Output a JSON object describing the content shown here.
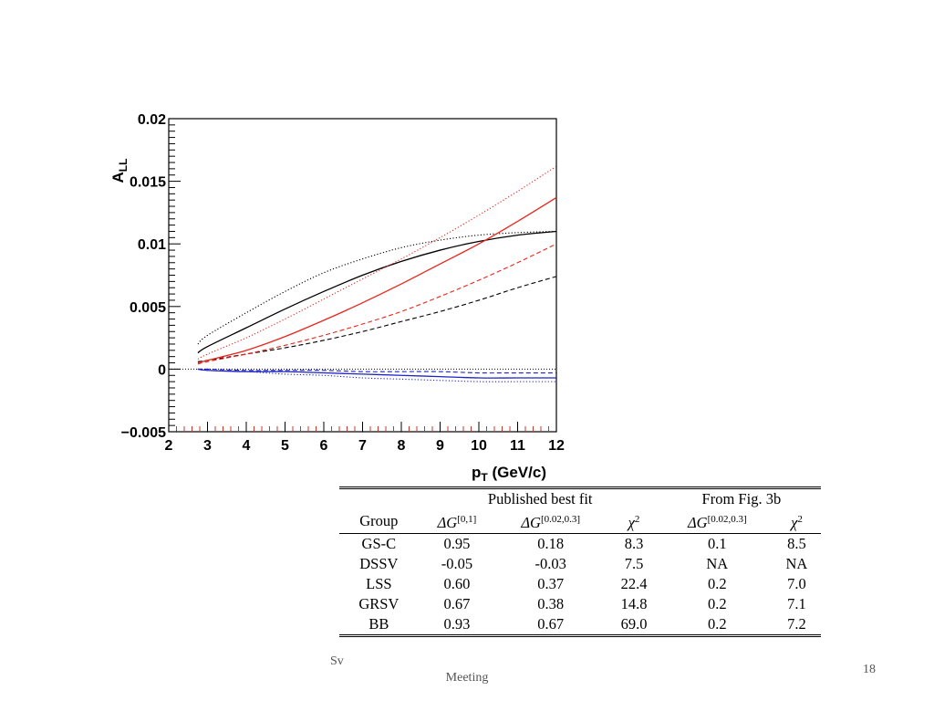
{
  "chart_data": {
    "type": "line",
    "xlabel": "p",
    "xlabel_sub": "T",
    "xlabel_unit": " (GeV/c)",
    "ylabel": "A",
    "ylabel_sub": "LL",
    "xlim": [
      2,
      12
    ],
    "ylim": [
      -0.005,
      0.02
    ],
    "x_ticks": [
      2,
      3,
      4,
      5,
      6,
      7,
      8,
      9,
      10,
      11,
      12
    ],
    "x_tick_labels": [
      "2",
      "3",
      "4",
      "5",
      "6",
      "7",
      "8",
      "9",
      "10",
      "11",
      "12"
    ],
    "y_ticks": [
      -0.005,
      0,
      0.005,
      0.01,
      0.015,
      0.02
    ],
    "y_tick_labels": [
      "−0.005",
      "0",
      "0.005",
      "0.01",
      "0.015",
      "0.02"
    ],
    "series": [
      {
        "color": "#000000",
        "style": "solid",
        "x": [
          2.75,
          3,
          4,
          5,
          6,
          7,
          8,
          9,
          10,
          11,
          12
        ],
        "y": [
          0.0013,
          0.0018,
          0.0033,
          0.0048,
          0.0062,
          0.0075,
          0.0086,
          0.0095,
          0.0102,
          0.0107,
          0.011
        ]
      },
      {
        "color": "#000000",
        "style": "dotted",
        "x": [
          2.75,
          3,
          4,
          5,
          6,
          7,
          8,
          9,
          10,
          11,
          12
        ],
        "y": [
          0.002,
          0.0027,
          0.0045,
          0.0062,
          0.0077,
          0.0088,
          0.0097,
          0.0103,
          0.0107,
          0.0109,
          0.011
        ]
      },
      {
        "color": "#000000",
        "style": "dashed",
        "x": [
          2.75,
          3,
          4,
          5,
          6,
          7,
          8,
          9,
          10,
          11,
          12
        ],
        "y": [
          0.0006,
          0.0007,
          0.0012,
          0.0017,
          0.0023,
          0.003,
          0.0038,
          0.0046,
          0.0055,
          0.0065,
          0.0074
        ]
      },
      {
        "color": "#e8251c",
        "style": "solid",
        "x": [
          2.75,
          3,
          4,
          5,
          6,
          7,
          8,
          9,
          10,
          11,
          12
        ],
        "y": [
          0.0005,
          0.0007,
          0.0015,
          0.0026,
          0.0039,
          0.0053,
          0.0068,
          0.0084,
          0.01,
          0.0118,
          0.0137
        ]
      },
      {
        "color": "#e8251c",
        "style": "dotted",
        "x": [
          2.75,
          3,
          4,
          5,
          6,
          7,
          8,
          9,
          10,
          11,
          12
        ],
        "y": [
          0.0008,
          0.0012,
          0.0025,
          0.004,
          0.0056,
          0.0072,
          0.0088,
          0.0105,
          0.0123,
          0.0142,
          0.0162
        ]
      },
      {
        "color": "#e8251c",
        "style": "dashed",
        "x": [
          2.75,
          3,
          4,
          5,
          6,
          7,
          8,
          9,
          10,
          11,
          12
        ],
        "y": [
          0.0004,
          0.0006,
          0.0012,
          0.0019,
          0.0027,
          0.0036,
          0.0046,
          0.0058,
          0.0071,
          0.0085,
          0.01
        ]
      },
      {
        "color": "#1f23c8",
        "style": "solid",
        "x": [
          2.75,
          3,
          4,
          5,
          6,
          7,
          8,
          9,
          10,
          11,
          12
        ],
        "y": [
          0,
          -0.0001,
          -0.0002,
          -0.0002,
          -0.0003,
          -0.0004,
          -0.0005,
          -0.0006,
          -0.0007,
          -0.0007,
          -0.0007
        ]
      },
      {
        "color": "#1f23c8",
        "style": "dotted",
        "x": [
          2.75,
          3,
          4,
          5,
          6,
          7,
          8,
          9,
          10,
          11,
          12
        ],
        "y": [
          0,
          -0.0001,
          -0.0002,
          -0.0004,
          -0.0005,
          -0.0007,
          -0.0008,
          -0.0009,
          -0.001,
          -0.001,
          -0.001
        ]
      },
      {
        "color": "#1f23c8",
        "style": "dashed",
        "x": [
          2.75,
          3,
          4,
          5,
          6,
          7,
          8,
          9,
          10,
          11,
          12
        ],
        "y": [
          0,
          0,
          -0.0001,
          -0.0001,
          -0.0001,
          -0.0002,
          -0.0002,
          -0.0002,
          -0.0003,
          -0.0003,
          -0.0003
        ]
      }
    ]
  },
  "table": {
    "group_header_published": "Published best fit",
    "group_header_fig": "From Fig.  3b",
    "col_group": "Group",
    "col_dg01_base": "ΔG",
    "col_dg01_sup": "[0,1]",
    "col_dg0203_base": "ΔG",
    "col_dg0203_sup": "[0.02,0.3]",
    "col_chi2_base": "χ",
    "col_chi2_sup": "2",
    "col_fig_dg_base": "ΔG",
    "col_fig_dg_sup": "[0.02,0.3]",
    "col_fig_chi2_base": "χ",
    "col_fig_chi2_sup": "2",
    "rows": [
      [
        "GS-C",
        "0.95",
        "0.18",
        "8.3",
        "0.1",
        "8.5"
      ],
      [
        "DSSV",
        "-0.05",
        "-0.03",
        "7.5",
        "NA",
        "NA"
      ],
      [
        "LSS",
        "0.60",
        "0.37",
        "22.4",
        "0.2",
        "7.0"
      ],
      [
        "GRSV",
        "0.67",
        "0.38",
        "14.8",
        "0.2",
        "7.1"
      ],
      [
        "BB",
        "0.93",
        "0.67",
        "69.0",
        "0.2",
        "7.2"
      ]
    ]
  },
  "footer": {
    "text_line1": "Sv",
    "text_line2": "Meeting",
    "page_number": "18"
  }
}
